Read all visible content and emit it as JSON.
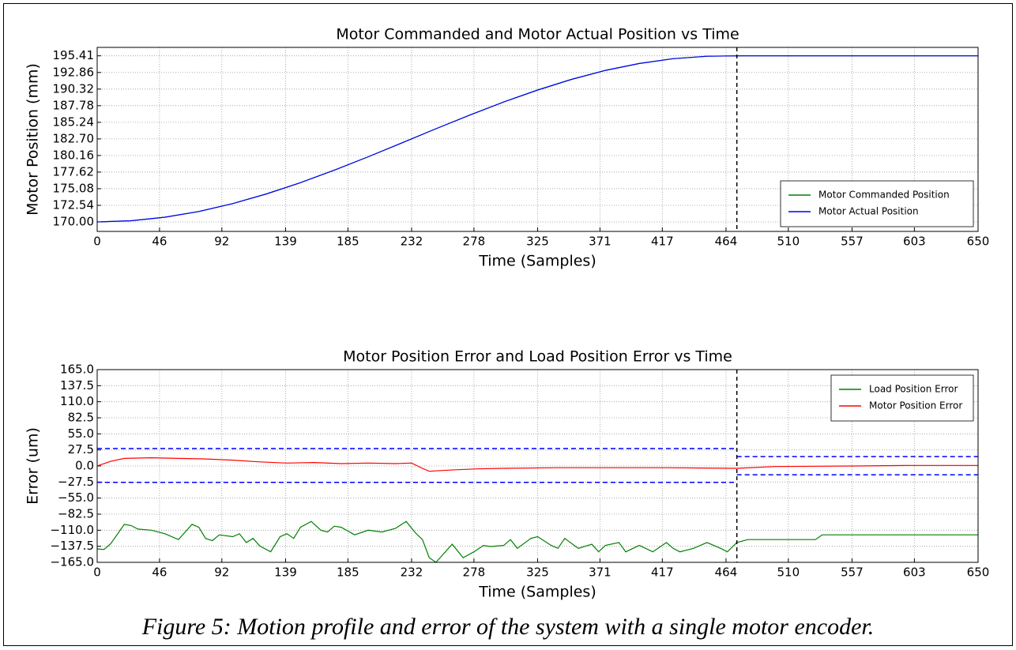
{
  "chart_data": [
    {
      "type": "line",
      "title": "Motor Commanded and Motor Actual Position vs Time",
      "xlabel": "Time (Samples)",
      "ylabel": "Motor Position (mm)",
      "xlim": [
        0,
        650
      ],
      "xticks": [
        0,
        46,
        92,
        139,
        185,
        232,
        278,
        325,
        371,
        417,
        464,
        510,
        557,
        603,
        650
      ],
      "ylim": [
        168.55,
        196.7
      ],
      "yticks": [
        {
          "value": 170,
          "label": "170.00"
        },
        172.54,
        175.08,
        177.62,
        180.16,
        {
          "value": 182.7,
          "label": "182.70"
        },
        185.24,
        187.78,
        190.32,
        192.86,
        195.41
      ],
      "grid": true,
      "legend": "lower right",
      "vline": 472,
      "series": [
        {
          "name": "Motor Commanded Position",
          "color": "#008000",
          "x": [
            0,
            25,
            50,
            75,
            100,
            125,
            150,
            175,
            200,
            225,
            250,
            275,
            300,
            325,
            350,
            375,
            400,
            425,
            450,
            475,
            500,
            550,
            600,
            650
          ],
          "values": [
            170,
            170.18,
            170.72,
            171.6,
            172.8,
            174.29,
            176,
            177.93,
            179.97,
            182.1,
            184.25,
            186.35,
            188.35,
            190.18,
            191.81,
            193.18,
            194.23,
            194.97,
            195.35,
            195.41,
            195.41,
            195.41,
            195.41,
            195.41
          ]
        },
        {
          "name": "Motor Actual Position",
          "color": "#0000ff",
          "x": [
            0,
            25,
            50,
            75,
            100,
            125,
            150,
            175,
            200,
            225,
            250,
            275,
            300,
            325,
            350,
            375,
            400,
            425,
            450,
            475,
            500,
            550,
            600,
            650
          ],
          "values": [
            170,
            170.18,
            170.72,
            171.6,
            172.8,
            174.29,
            176,
            177.93,
            179.97,
            182.1,
            184.25,
            186.35,
            188.35,
            190.18,
            191.81,
            193.18,
            194.23,
            194.97,
            195.35,
            195.41,
            195.41,
            195.41,
            195.41,
            195.41
          ]
        }
      ]
    },
    {
      "type": "line",
      "title": "Motor Position Error and Load Position Error vs Time",
      "xlabel": "Time (Samples)",
      "ylabel": "Error (um)",
      "xlim": [
        0,
        650
      ],
      "xticks": [
        0,
        46,
        92,
        139,
        185,
        232,
        278,
        325,
        371,
        417,
        464,
        510,
        557,
        603,
        650
      ],
      "ylim": [
        -165,
        165
      ],
      "yticks": [
        {
          "value": -165,
          "label": "−165.0"
        },
        {
          "value": -137.5,
          "label": "−137.5"
        },
        {
          "value": -110,
          "label": "−110.0"
        },
        {
          "value": -82.5,
          "label": "−82.5"
        },
        {
          "value": -55,
          "label": "−55.0"
        },
        {
          "value": -27.5,
          "label": "−27.5"
        },
        {
          "value": 0,
          "label": "0.0"
        },
        27.5,
        {
          "value": 55,
          "label": "55.0"
        },
        82.5,
        {
          "value": 110,
          "label": "110.0"
        },
        137.5,
        {
          "value": 165,
          "label": "165.0"
        }
      ],
      "grid": true,
      "legend": "upper right",
      "vline": 472,
      "bounds": [
        {
          "x": [
            0,
            472
          ],
          "upper": 30,
          "lower": -28
        },
        {
          "x": [
            472,
            650
          ],
          "upper": 16,
          "lower": -15
        }
      ],
      "series": [
        {
          "name": "Load Position Error",
          "color": "#008000",
          "x": [
            0,
            5,
            10,
            20,
            25,
            30,
            40,
            50,
            60,
            70,
            75,
            80,
            85,
            90,
            100,
            105,
            110,
            115,
            120,
            128,
            135,
            140,
            145,
            150,
            158,
            165,
            170,
            175,
            180,
            190,
            200,
            210,
            220,
            228,
            235,
            240,
            245,
            250,
            255,
            262,
            270,
            278,
            285,
            290,
            300,
            305,
            310,
            320,
            325,
            335,
            340,
            345,
            355,
            365,
            370,
            375,
            385,
            390,
            400,
            410,
            420,
            425,
            430,
            440,
            450,
            460,
            465,
            472,
            480,
            530,
            535,
            650
          ],
          "values": [
            -142,
            -143,
            -133,
            -100,
            -102,
            -108,
            -110,
            -116,
            -126,
            -100,
            -105,
            -124,
            -128,
            -118,
            -121,
            -116,
            -131,
            -124,
            -137,
            -147,
            -121,
            -116,
            -124,
            -105,
            -95,
            -110,
            -113,
            -103,
            -105,
            -118,
            -110,
            -113,
            -107,
            -95,
            -115,
            -126,
            -157,
            -165,
            -152,
            -134,
            -157,
            -147,
            -136,
            -138,
            -136,
            -126,
            -141,
            -124,
            -121,
            -136,
            -141,
            -124,
            -141,
            -134,
            -147,
            -136,
            -131,
            -147,
            -136,
            -147,
            -131,
            -141,
            -147,
            -141,
            -131,
            -141,
            -147,
            -131,
            -126,
            -126,
            -118,
            -118
          ]
        },
        {
          "name": "Motor Position Error",
          "color": "#ff0000",
          "x": [
            0,
            10,
            20,
            40,
            60,
            80,
            100,
            120,
            140,
            160,
            180,
            200,
            220,
            232,
            240,
            245,
            260,
            280,
            300,
            340,
            380,
            420,
            472,
            500,
            560,
            600,
            650
          ],
          "values": [
            0,
            8,
            13,
            14,
            13,
            12,
            10,
            7,
            5,
            6,
            4,
            5,
            4,
            5,
            -4,
            -9,
            -7,
            -5,
            -4,
            -3,
            -3,
            -3,
            -4,
            -1,
            0,
            1,
            1
          ]
        }
      ]
    }
  ]
}
